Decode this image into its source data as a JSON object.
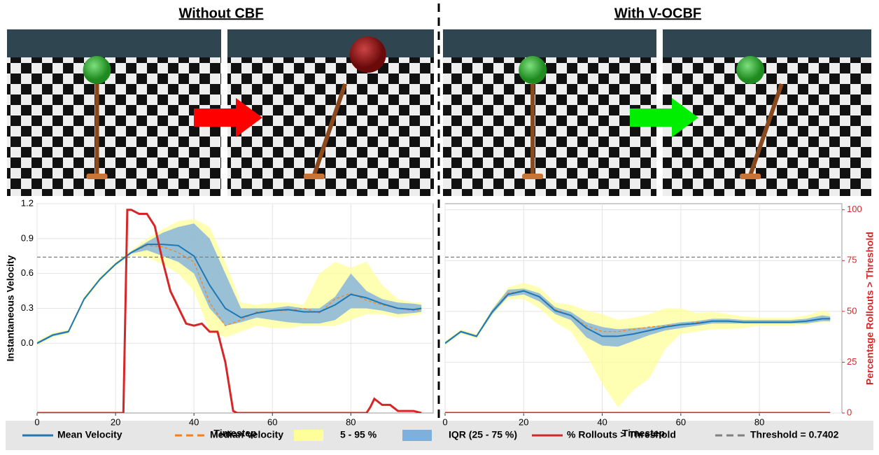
{
  "panels": [
    "Without CBF",
    "With V-OCBF"
  ],
  "legend": [
    {
      "name": "Mean Velocity",
      "color": "#1f77b4",
      "style": "solid"
    },
    {
      "name": "Median Velocity",
      "color": "#ff7f0e",
      "style": "dashed"
    },
    {
      "name": "5 - 95 %",
      "color": "#ffff99",
      "style": "band"
    },
    {
      "name": "IQR (25 - 75 %)",
      "color": "#7fb0dc",
      "style": "band"
    },
    {
      "name": "% Rollouts > Threshold",
      "color": "#d62728",
      "style": "solid"
    },
    {
      "name": "Threshold = 0.7402",
      "color": "#808080",
      "style": "dashed"
    }
  ],
  "chart_data": [
    {
      "type": "line",
      "x_label": "Timestep",
      "y_label": "Instantaneous Velocity",
      "xlim": [
        0,
        101
      ],
      "xticks": [
        0,
        20,
        40,
        60,
        80
      ],
      "ylim": [
        -0.6,
        1.2
      ],
      "yticks": [
        {
          "value": 0,
          "label": "0.0"
        },
        0.3,
        0.6,
        0.9,
        1.2
      ],
      "y2lim": [
        0,
        103
      ],
      "grid": true,
      "x": [
        0,
        4,
        8,
        12,
        16,
        20,
        24,
        28,
        32,
        36,
        40,
        44,
        48,
        52,
        56,
        60,
        64,
        68,
        72,
        76,
        80,
        84,
        88,
        92,
        96,
        98
      ],
      "series": [
        {
          "values": [
            0.0,
            0.07,
            0.1,
            0.38,
            0.55,
            0.68,
            0.78,
            0.85,
            0.85,
            0.84,
            0.75,
            0.5,
            0.3,
            0.22,
            0.26,
            0.28,
            0.29,
            0.27,
            0.27,
            0.33,
            0.42,
            0.39,
            0.34,
            0.3,
            0.29,
            0.3
          ]
        },
        {
          "values": [
            0.0,
            0.07,
            0.1,
            0.38,
            0.55,
            0.68,
            0.78,
            0.84,
            0.83,
            0.78,
            0.7,
            0.35,
            0.15,
            0.2,
            0.27,
            0.28,
            0.28,
            0.3,
            0.26,
            0.38,
            0.43,
            0.37,
            0.33,
            0.3,
            0.28,
            0.29
          ]
        },
        {
          "lower": [
            -0.02,
            0.05,
            0.08,
            0.36,
            0.53,
            0.66,
            0.76,
            0.74,
            0.68,
            0.6,
            0.45,
            0.1,
            0.05,
            0.1,
            0.15,
            0.13,
            0.13,
            0.15,
            0.15,
            0.15,
            0.2,
            0.25,
            0.25,
            0.22,
            0.24,
            0.25
          ],
          "upper": [
            0.02,
            0.09,
            0.12,
            0.4,
            0.57,
            0.7,
            0.8,
            0.9,
            0.98,
            1.05,
            1.07,
            1.0,
            0.7,
            0.35,
            0.33,
            0.35,
            0.35,
            0.33,
            0.6,
            0.7,
            0.65,
            0.7,
            0.5,
            0.38,
            0.35,
            0.35
          ]
        },
        {
          "lower": [
            -0.01,
            0.06,
            0.09,
            0.37,
            0.54,
            0.67,
            0.77,
            0.8,
            0.75,
            0.7,
            0.6,
            0.3,
            0.15,
            0.18,
            0.22,
            0.2,
            0.18,
            0.17,
            0.17,
            0.2,
            0.3,
            0.3,
            0.28,
            0.25,
            0.26,
            0.27
          ],
          "upper": [
            0.01,
            0.08,
            0.11,
            0.39,
            0.56,
            0.69,
            0.79,
            0.87,
            0.95,
            1.0,
            1.03,
            0.9,
            0.6,
            0.3,
            0.3,
            0.3,
            0.32,
            0.3,
            0.3,
            0.4,
            0.6,
            0.45,
            0.38,
            0.35,
            0.34,
            0.33
          ]
        },
        {
          "axis": "y2",
          "x": [
            0,
            22,
            23,
            24,
            26,
            28,
            30,
            32,
            34,
            36,
            38,
            40,
            42,
            44,
            46,
            48,
            50,
            51,
            84,
            85,
            86,
            88,
            90,
            92,
            94,
            96,
            98
          ],
          "values": [
            0,
            0,
            100,
            100,
            98,
            98,
            92,
            75,
            60,
            52,
            44,
            43,
            44,
            40,
            40,
            25,
            1,
            0,
            0,
            3,
            7,
            4,
            4,
            1,
            1,
            1,
            0
          ]
        },
        {
          "value": 0.7402
        }
      ]
    },
    {
      "type": "line",
      "x_label": "Timestep",
      "y2_label": "Percentage Rollouts > Threshold",
      "xlim": [
        0,
        101
      ],
      "xticks": [
        0,
        20,
        40,
        60,
        80
      ],
      "ylim": [
        -0.6,
        1.2
      ],
      "y2lim": [
        0,
        103
      ],
      "y2ticks": [
        0,
        25,
        50,
        75,
        100
      ],
      "grid": true,
      "x": [
        0,
        4,
        8,
        12,
        16,
        20,
        24,
        28,
        32,
        36,
        40,
        44,
        48,
        52,
        56,
        60,
        64,
        68,
        72,
        76,
        80,
        84,
        88,
        92,
        96,
        98
      ],
      "series": [
        {
          "values": [
            0.0,
            0.1,
            0.06,
            0.27,
            0.42,
            0.45,
            0.4,
            0.28,
            0.24,
            0.13,
            0.06,
            0.06,
            0.08,
            0.11,
            0.14,
            0.16,
            0.17,
            0.19,
            0.19,
            0.18,
            0.18,
            0.18,
            0.18,
            0.19,
            0.21,
            0.21
          ]
        },
        {
          "values": [
            0.0,
            0.1,
            0.06,
            0.27,
            0.43,
            0.45,
            0.4,
            0.29,
            0.24,
            0.15,
            0.1,
            0.1,
            0.12,
            0.14,
            0.15,
            0.16,
            0.18,
            0.19,
            0.19,
            0.18,
            0.18,
            0.18,
            0.18,
            0.19,
            0.21,
            0.21
          ]
        },
        {
          "lower": [
            -0.02,
            0.08,
            0.04,
            0.24,
            0.38,
            0.38,
            0.3,
            0.18,
            0.1,
            -0.1,
            -0.35,
            -0.55,
            -0.4,
            -0.3,
            -0.05,
            0.08,
            0.1,
            0.12,
            0.12,
            0.13,
            0.15,
            0.15,
            0.15,
            0.16,
            0.18,
            0.18
          ],
          "upper": [
            0.02,
            0.12,
            0.08,
            0.3,
            0.48,
            0.52,
            0.48,
            0.35,
            0.33,
            0.28,
            0.25,
            0.2,
            0.22,
            0.25,
            0.3,
            0.3,
            0.26,
            0.27,
            0.25,
            0.23,
            0.22,
            0.22,
            0.22,
            0.24,
            0.28,
            0.26
          ]
        },
        {
          "lower": [
            -0.01,
            0.09,
            0.05,
            0.25,
            0.4,
            0.42,
            0.36,
            0.25,
            0.2,
            0.05,
            -0.02,
            -0.03,
            0.02,
            0.07,
            0.11,
            0.13,
            0.15,
            0.17,
            0.17,
            0.17,
            0.17,
            0.17,
            0.17,
            0.17,
            0.19,
            0.19
          ],
          "upper": [
            0.01,
            0.11,
            0.07,
            0.29,
            0.46,
            0.47,
            0.43,
            0.31,
            0.27,
            0.18,
            0.14,
            0.12,
            0.13,
            0.14,
            0.16,
            0.18,
            0.19,
            0.21,
            0.21,
            0.2,
            0.2,
            0.2,
            0.2,
            0.21,
            0.24,
            0.23
          ]
        },
        {
          "axis": "y2",
          "x": [
            0,
            98
          ],
          "values": [
            0,
            0
          ]
        },
        {
          "value": 0.7402
        }
      ]
    }
  ]
}
